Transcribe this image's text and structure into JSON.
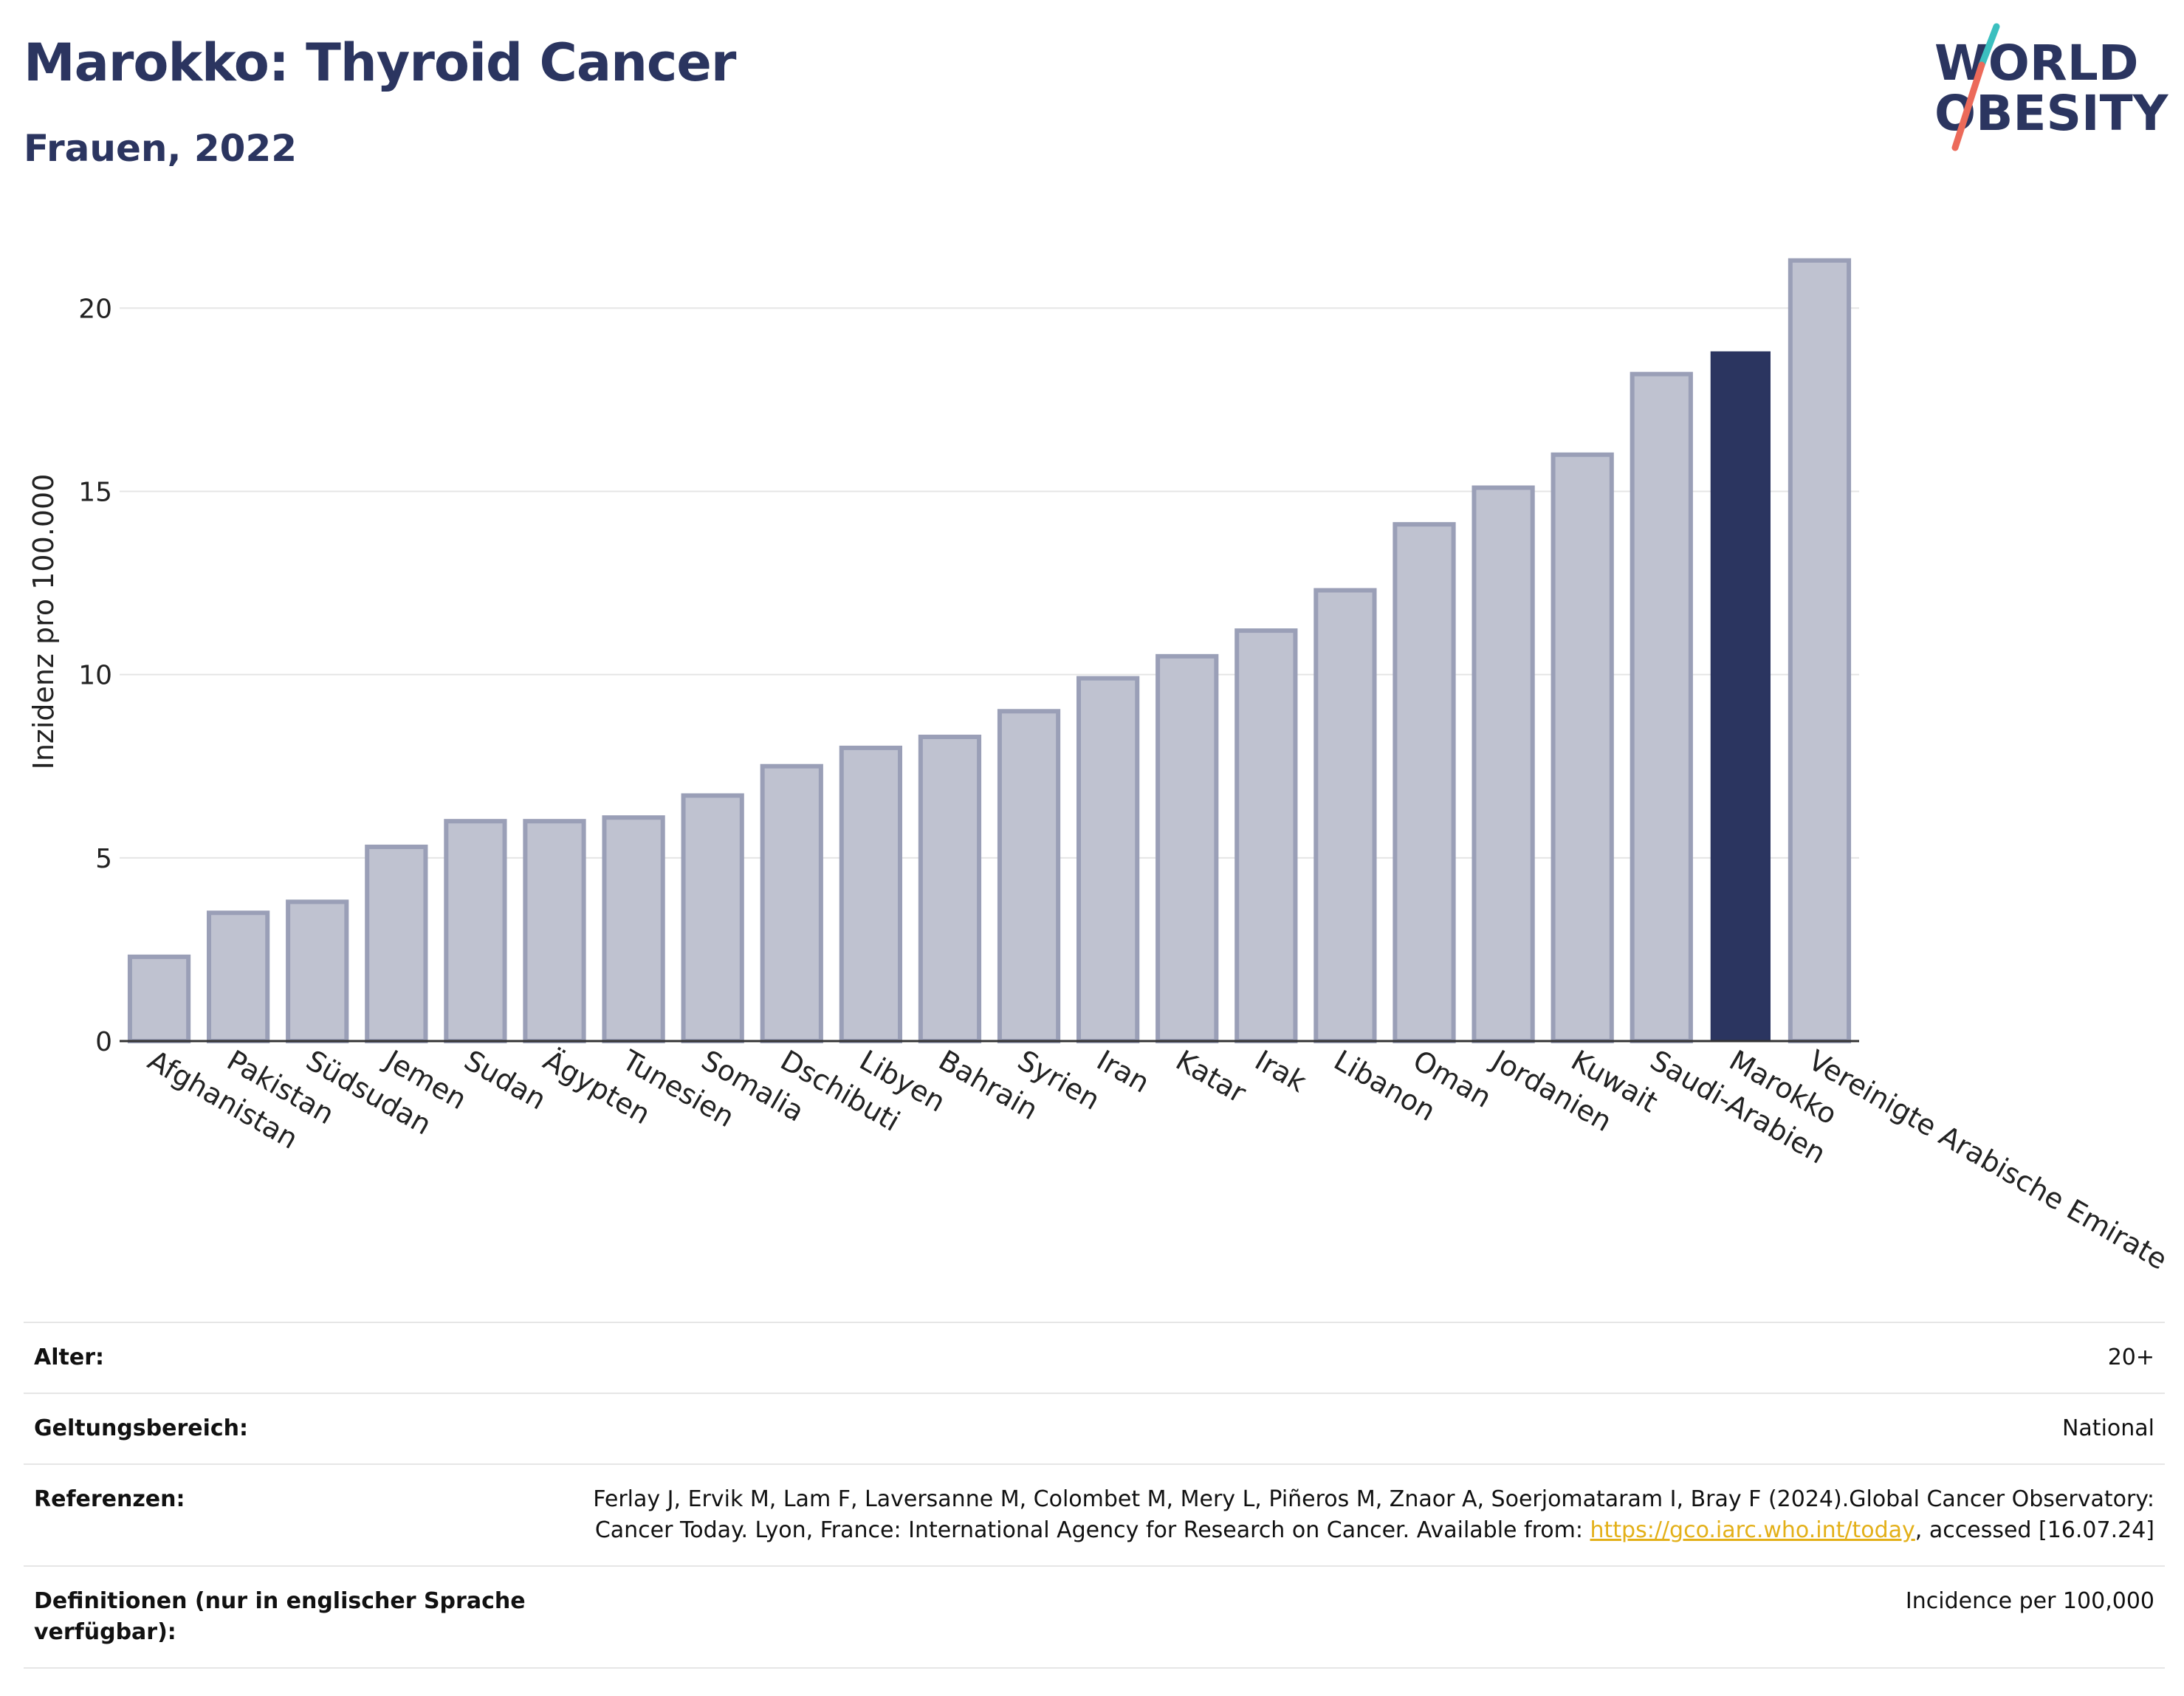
{
  "header": {
    "title": "Marokko: Thyroid Cancer",
    "subtitle": "Frauen, 2022"
  },
  "logo": {
    "line1": "WORLD",
    "line2": "OBESITY"
  },
  "colors": {
    "bar": "#bfc2d0",
    "bar_border": "#9a9fb7",
    "highlight": "#2b3560",
    "grid": "#e5e5e5",
    "axis": "#333333",
    "title": "#2b3560"
  },
  "chart_data": {
    "type": "bar",
    "categories": [
      "Afghanistan",
      "Pakistan",
      "Südsudan",
      "Jemen",
      "Sudan",
      "Ägypten",
      "Tunesien",
      "Somalia",
      "Dschibuti",
      "Libyen",
      "Bahrain",
      "Syrien",
      "Iran",
      "Katar",
      "Irak",
      "Libanon",
      "Oman",
      "Jordanien",
      "Kuwait",
      "Saudi-Arabien",
      "Marokko",
      "Vereinigte Arabische Emirate"
    ],
    "values": [
      2.3,
      3.5,
      3.8,
      5.3,
      6.0,
      6.0,
      6.1,
      6.7,
      7.5,
      8.0,
      8.3,
      9.0,
      9.9,
      10.5,
      11.2,
      12.3,
      14.1,
      15.1,
      16.0,
      18.2,
      18.8,
      21.3
    ],
    "highlight": "Marokko",
    "ylabel": "Inzidenz pro 100.000",
    "xlabel": "",
    "ylim": [
      0,
      22
    ],
    "yticks": [
      0,
      5,
      10,
      15,
      20
    ],
    "grid": true
  },
  "meta": {
    "age_label": "Alter:",
    "age_value": "20+",
    "scope_label": "Geltungsbereich:",
    "scope_value": "National",
    "references_label": "Referenzen:",
    "references_text_1": "Ferlay J, Ervik M, Lam F, Laversanne M, Colombet M, Mery L, Piñeros M, Znaor A, Soerjomataram I, Bray F (2024).Global Cancer Observatory: Cancer Today. Lyon, France: International Agency for Research on Cancer. Available from: ",
    "references_link": "https://gco.iarc.who.int/today",
    "references_text_2": ", accessed [16.07.24]",
    "definitions_label": "Definitionen (nur in englischer Sprache verfügbar):",
    "definitions_value": "Incidence per 100,000"
  }
}
